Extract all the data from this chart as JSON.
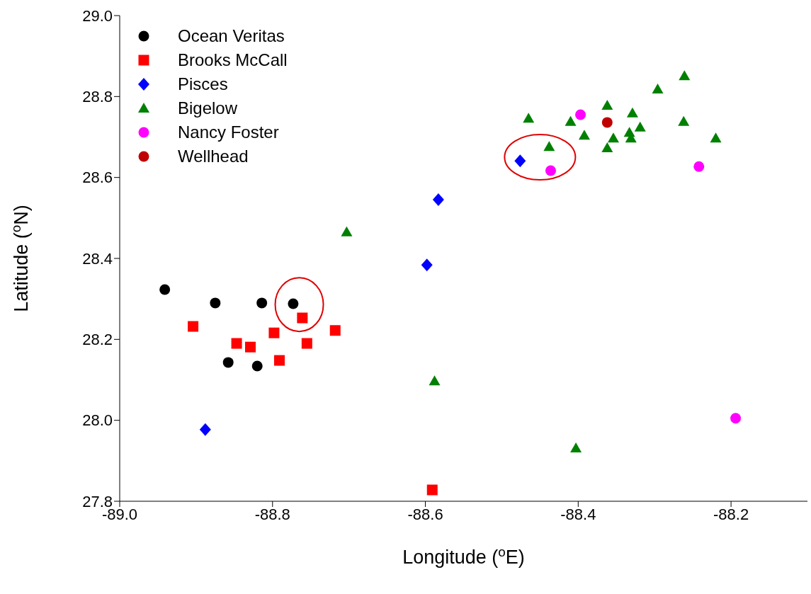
{
  "chart_data": {
    "type": "scatter",
    "xlabel": "Longitude ($^{o}$E)",
    "ylabel": "Latitude ($^{o}$N)",
    "xlim": [
      -89.0,
      -88.1
    ],
    "xticks": [
      {
        "value": -89.0,
        "label": "-89.0"
      },
      -88.8,
      -88.6,
      -88.4,
      -88.2
    ],
    "ylim": [
      27.8,
      29.0
    ],
    "yticks": [
      27.8,
      {
        "value": 28.0,
        "label": "28.0"
      },
      28.2,
      28.4,
      28.6,
      28.8,
      {
        "value": 29.0,
        "label": "29.0"
      }
    ],
    "grid": false,
    "legend": "top left",
    "series": [
      {
        "name": "Ocean Veritas",
        "color": "#000000",
        "marker": "circle",
        "x": [
          -88.941,
          -88.875,
          -88.814,
          -88.773,
          -88.858,
          -88.82
        ],
        "values": [
          28.323,
          28.29,
          28.29,
          28.288,
          28.143,
          28.134
        ]
      },
      {
        "name": "Brooks McCall",
        "color": "#ff0000",
        "marker": "square",
        "x": [
          -88.904,
          -88.847,
          -88.829,
          -88.798,
          -88.791,
          -88.761,
          -88.755,
          -88.718,
          -88.591
        ],
        "values": [
          28.232,
          28.19,
          28.181,
          28.216,
          28.148,
          28.253,
          28.19,
          28.222,
          27.828
        ]
      },
      {
        "name": "Pisces",
        "color": "#0000ff",
        "marker": "diamond",
        "x": [
          -88.888,
          -88.598,
          -88.583,
          -88.476
        ],
        "values": [
          27.977,
          28.384,
          28.545,
          28.641
        ]
      },
      {
        "name": "Bigelow",
        "color": "#008000",
        "marker": "triangle",
        "x": [
          -88.703,
          -88.588,
          -88.403,
          -88.465,
          -88.438,
          -88.41,
          -88.392,
          -88.362,
          -88.362,
          -88.354,
          -88.329,
          -88.333,
          -88.331,
          -88.319,
          -88.296,
          -88.261,
          -88.262,
          -88.22
        ],
        "values": [
          28.465,
          28.097,
          27.931,
          28.746,
          28.676,
          28.738,
          28.704,
          28.778,
          28.673,
          28.697,
          28.759,
          28.711,
          28.697,
          28.724,
          28.818,
          28.851,
          28.738,
          28.697
        ]
      },
      {
        "name": "Nancy Foster",
        "color": "#ff00ff",
        "marker": "circle",
        "x": [
          -88.397,
          -88.436,
          -88.242,
          -88.194
        ],
        "values": [
          28.755,
          28.617,
          28.627,
          28.005
        ]
      },
      {
        "name": "Wellhead",
        "color": "#c00000",
        "marker": "circle",
        "x": [
          -88.362
        ],
        "values": [
          28.736
        ]
      }
    ]
  }
}
